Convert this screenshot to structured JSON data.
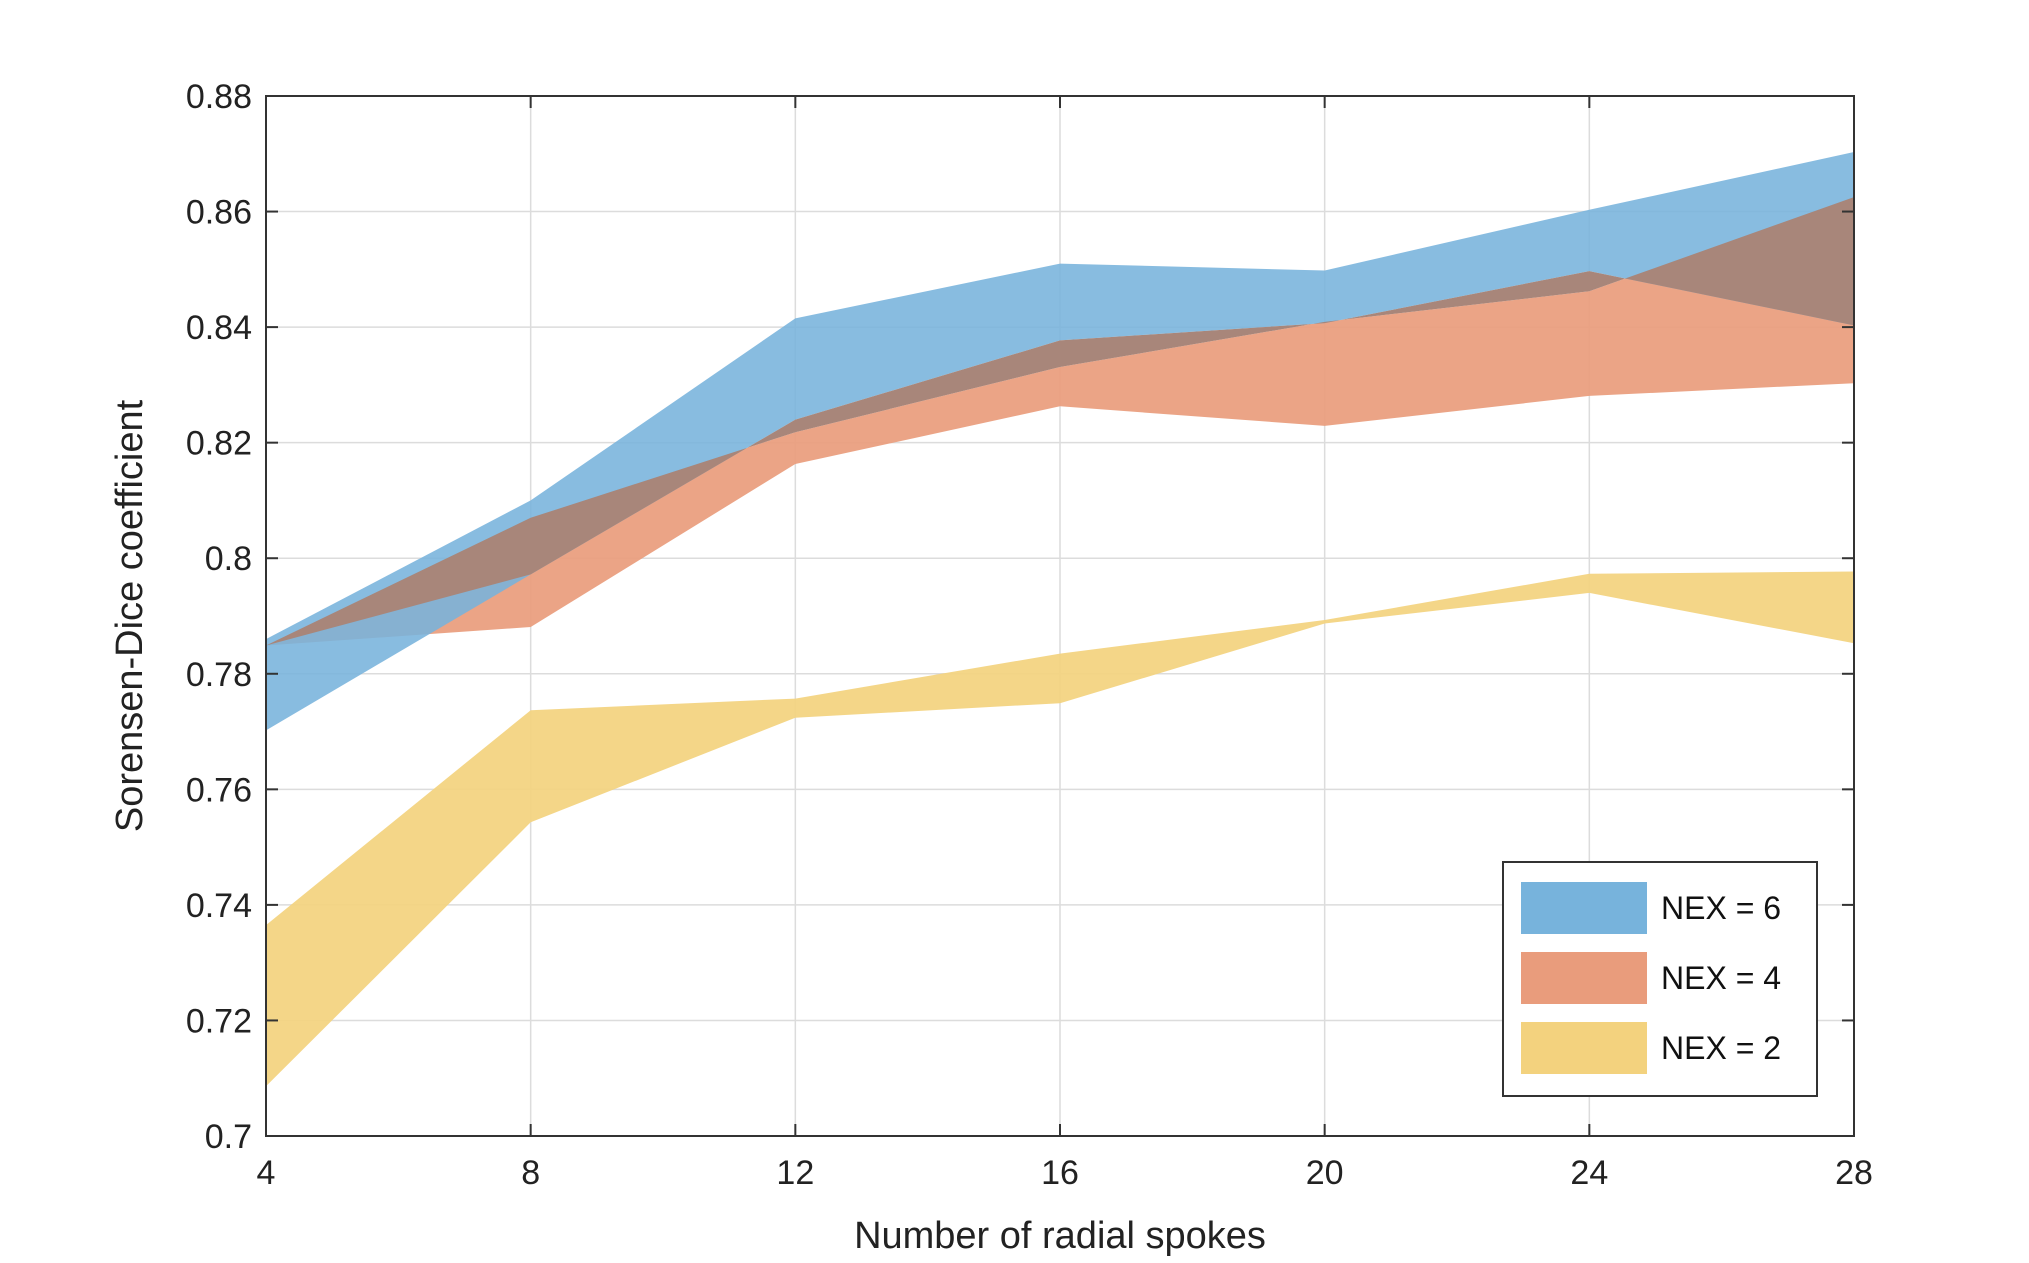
{
  "chart_data": {
    "type": "area",
    "title": "",
    "xlabel": "Number of radial spokes",
    "ylabel": "Sorensen-Dice coefficient",
    "xlim": [
      4,
      28
    ],
    "ylim": [
      0.7,
      0.88
    ],
    "x_ticks": [
      4,
      8,
      12,
      16,
      20,
      24,
      28
    ],
    "x_tick_labels": [
      "4",
      "8",
      "12",
      "16",
      "20",
      "24",
      "28"
    ],
    "y_ticks": [
      0.7,
      0.72,
      0.74,
      0.76,
      0.78,
      0.8,
      0.82,
      0.84,
      0.86,
      0.88
    ],
    "y_tick_labels": [
      "0.7",
      "0.72",
      "0.74",
      "0.76",
      "0.78",
      "0.8",
      "0.82",
      "0.84",
      "0.86",
      "0.88"
    ],
    "grid": true,
    "legend_position": "bottom-right",
    "x": [
      4,
      8,
      12,
      16,
      20,
      24,
      28
    ],
    "series": [
      {
        "name": "NEX = 6",
        "color": "#77b3dc",
        "upper": [
          0.786,
          0.81,
          0.8415,
          0.851,
          0.8498,
          0.8603,
          0.8703
        ],
        "lower": [
          0.7702,
          0.7972,
          0.824,
          0.8377,
          0.8407,
          0.8497,
          0.8403
        ]
      },
      {
        "name": "NEX = 4",
        "color": "#e99c7c",
        "upper": [
          0.7849,
          0.807,
          0.8218,
          0.8331,
          0.8409,
          0.8462,
          0.8625
        ],
        "lower": [
          0.7849,
          0.7881,
          0.8163,
          0.8263,
          0.8229,
          0.8281,
          0.8303
        ]
      },
      {
        "name": "NEX = 2",
        "color": "#f3d27e",
        "upper": [
          0.7365,
          0.7737,
          0.7757,
          0.7835,
          0.7893,
          0.7973,
          0.7977
        ],
        "lower": [
          0.7086,
          0.7543,
          0.7724,
          0.7749,
          0.7887,
          0.794,
          0.7853
        ]
      }
    ]
  }
}
